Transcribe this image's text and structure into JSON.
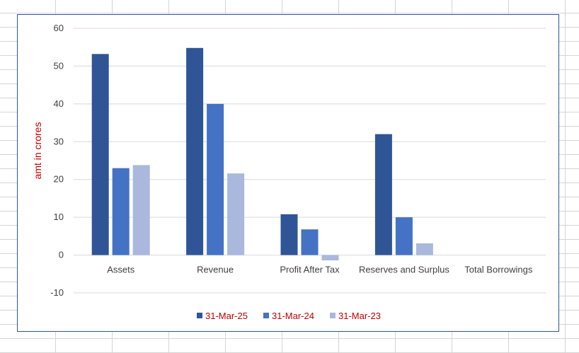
{
  "chart_data": {
    "type": "bar",
    "categories": [
      "Assets",
      "Revenue",
      "Profit After Tax",
      "Reserves and Surplus",
      "Total Borrowings"
    ],
    "series": [
      {
        "name": "31-Mar-25",
        "color": "#2f5597",
        "values": [
          53.2,
          54.8,
          10.8,
          32.0,
          0
        ]
      },
      {
        "name": "31-Mar-24",
        "color": "#4472c4",
        "values": [
          23.0,
          40.0,
          6.8,
          10.0,
          0
        ]
      },
      {
        "name": "31-Mar-23",
        "color": "#a9b8dc",
        "values": [
          23.8,
          21.6,
          -1.4,
          3.1,
          0
        ]
      }
    ],
    "ylabel": "amt in crores",
    "ylabel_color": "#c00000",
    "legend_text_color": "#c00000",
    "ylim": [
      -10,
      60
    ],
    "yticks": [
      -10,
      0,
      10,
      20,
      30,
      40,
      50,
      60
    ],
    "grid": true,
    "legend_position": "bottom"
  }
}
